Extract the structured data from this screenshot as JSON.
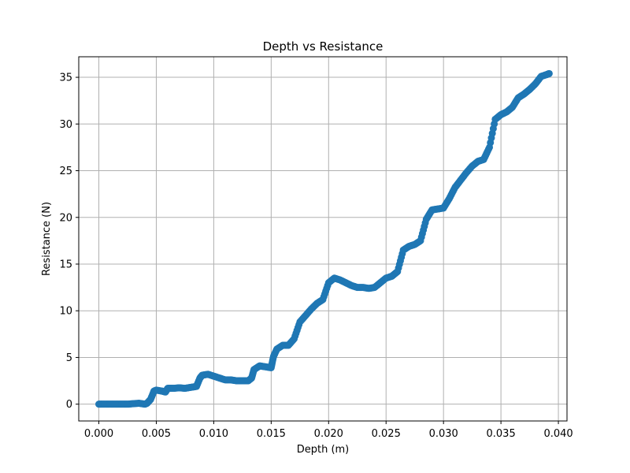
{
  "chart_data": {
    "type": "scatter",
    "title": "Depth vs Resistance",
    "xlabel": "Depth (m)",
    "ylabel": "Resistance (N)",
    "xlim": [
      -0.00175,
      0.04075
    ],
    "ylim": [
      -1.8,
      37.2
    ],
    "x_ticks": [
      0.0,
      0.005,
      0.01,
      0.015,
      0.02,
      0.025,
      0.03,
      0.035,
      0.04
    ],
    "x_tick_labels": [
      "0.000",
      "0.005",
      "0.010",
      "0.015",
      "0.020",
      "0.025",
      "0.030",
      "0.035",
      "0.040"
    ],
    "y_ticks": [
      0,
      5,
      10,
      15,
      20,
      25,
      30,
      35
    ],
    "y_tick_labels": [
      "0",
      "5",
      "10",
      "15",
      "20",
      "25",
      "30",
      "35"
    ],
    "grid": true,
    "marker_color": "#1f77b4",
    "series": [
      {
        "x": [
          0.0,
          0.0005,
          0.001,
          0.0015,
          0.002,
          0.0025,
          0.003,
          0.0035,
          0.004,
          0.0042,
          0.0045,
          0.0048,
          0.005,
          0.0055,
          0.0058,
          0.006,
          0.0065,
          0.007,
          0.0075,
          0.008,
          0.0085,
          0.0088,
          0.009,
          0.0095,
          0.01,
          0.0105,
          0.011,
          0.0115,
          0.012,
          0.0125,
          0.013,
          0.0133,
          0.0135,
          0.014,
          0.0145,
          0.015,
          0.0152,
          0.0155,
          0.016,
          0.0165,
          0.017,
          0.0175,
          0.018,
          0.0185,
          0.019,
          0.0195,
          0.02,
          0.0205,
          0.021,
          0.0215,
          0.022,
          0.0225,
          0.023,
          0.0235,
          0.024,
          0.0245,
          0.025,
          0.0255,
          0.026,
          0.0265,
          0.027,
          0.0275,
          0.028,
          0.0285,
          0.029,
          0.0295,
          0.03,
          0.0305,
          0.031,
          0.0315,
          0.032,
          0.0325,
          0.033,
          0.0335,
          0.034,
          0.0345,
          0.035,
          0.0355,
          0.036,
          0.0365,
          0.037,
          0.0375,
          0.038,
          0.0385,
          0.039,
          0.0392
        ],
        "y": [
          0.0,
          0.0,
          0.0,
          0.0,
          0.0,
          0.0,
          0.05,
          0.1,
          0.0,
          0.1,
          0.5,
          1.4,
          1.5,
          1.4,
          1.3,
          1.7,
          1.7,
          1.75,
          1.7,
          1.8,
          1.9,
          2.8,
          3.1,
          3.2,
          3.0,
          2.8,
          2.6,
          2.6,
          2.5,
          2.5,
          2.5,
          2.8,
          3.7,
          4.1,
          4.0,
          3.9,
          5.1,
          5.9,
          6.3,
          6.3,
          7.0,
          8.8,
          9.5,
          10.2,
          10.8,
          11.2,
          13.0,
          13.5,
          13.3,
          13.0,
          12.7,
          12.5,
          12.5,
          12.4,
          12.5,
          13.0,
          13.5,
          13.7,
          14.2,
          16.5,
          16.9,
          17.1,
          17.5,
          19.8,
          20.8,
          20.9,
          21.0,
          22.0,
          23.2,
          24.0,
          24.8,
          25.5,
          26.0,
          26.2,
          27.5,
          30.5,
          31.0,
          31.3,
          31.8,
          32.8,
          33.2,
          33.7,
          34.3,
          35.1,
          35.3,
          35.4
        ]
      }
    ]
  }
}
